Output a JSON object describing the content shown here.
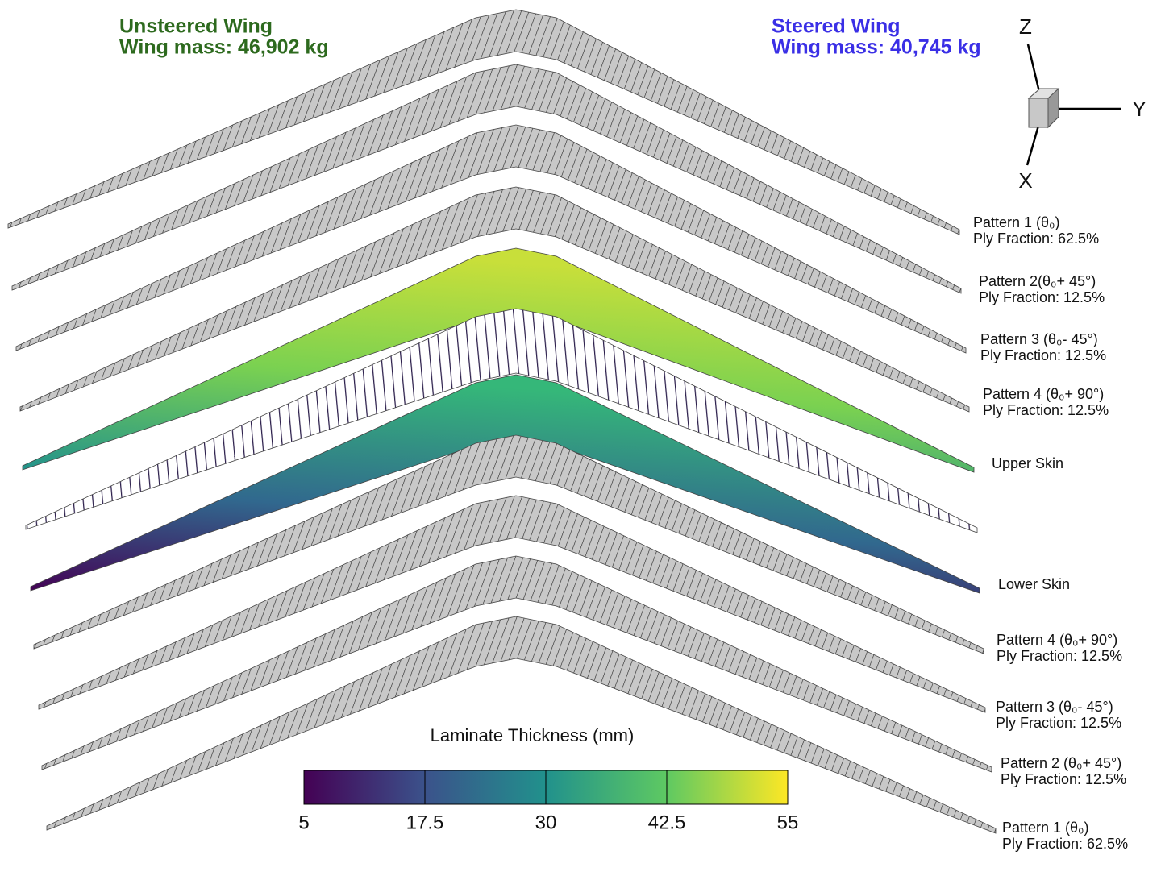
{
  "header": {
    "unsteered": {
      "title": "Unsteered Wing",
      "mass": "Wing mass: 46,902 kg"
    },
    "steered": {
      "title": "Steered Wing",
      "mass": "Wing mass: 40,745 kg"
    }
  },
  "axes": {
    "z": "Z",
    "y": "Y",
    "x": "X"
  },
  "layers": [
    {
      "name": "Pattern 1 (θ₀)",
      "fraction": "Ply Fraction: 62.5%"
    },
    {
      "name": "Pattern 2(θ₀+ 45°)",
      "fraction": "Ply Fraction: 12.5%"
    },
    {
      "name": "Pattern 3 (θ₀- 45°)",
      "fraction": "Ply Fraction: 12.5%"
    },
    {
      "name": "Pattern 4 (θ₀+ 90°)",
      "fraction": "Ply Fraction: 12.5%"
    },
    {
      "name": "Upper Skin"
    },
    {
      "name": "Lower Skin"
    },
    {
      "name": "Pattern 4 (θ₀+ 90°)",
      "fraction": "Ply Fraction: 12.5%"
    },
    {
      "name": "Pattern 3 (θ₀- 45°)",
      "fraction": "Ply Fraction: 12.5%"
    },
    {
      "name": "Pattern 2 (θ₀+ 45°)",
      "fraction": "Ply Fraction: 12.5%"
    },
    {
      "name": "Pattern 1 (θ₀)",
      "fraction": "Ply Fraction: 62.5%"
    }
  ],
  "colorbar": {
    "title": "Laminate Thickness (mm)",
    "lim": [
      5,
      55
    ],
    "ticks": [
      5,
      17.5,
      30,
      42.5,
      55
    ]
  }
}
